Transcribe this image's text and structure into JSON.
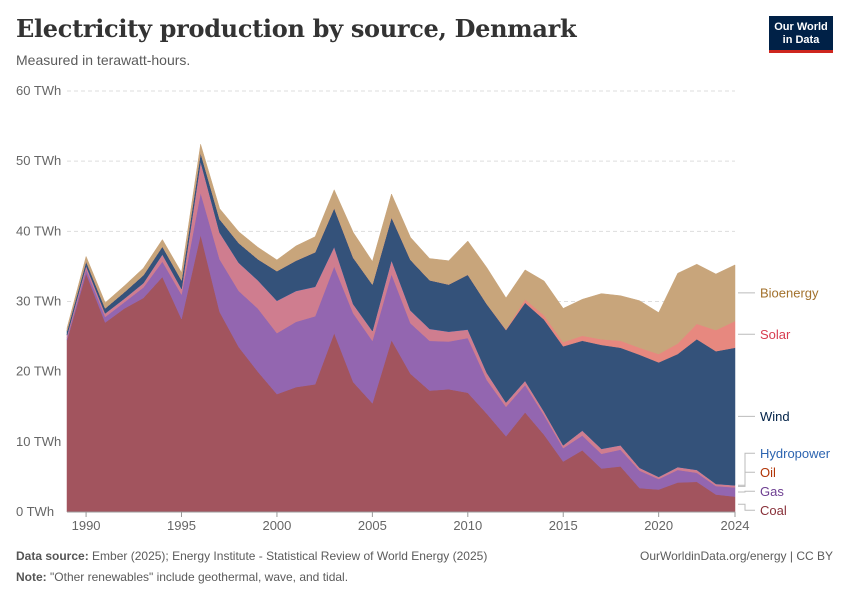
{
  "title": "Electricity production by source, Denmark",
  "subtitle": "Measured in terawatt-hours.",
  "logo": {
    "line1": "Our World",
    "line2": "in Data",
    "bg": "#002147",
    "accent": "#ce261e"
  },
  "footer": {
    "source_label": "Data source:",
    "source_text": "Ember (2025); Energy Institute - Statistical Review of World Energy (2025)",
    "note_label": "Note:",
    "note_text": "\"Other renewables\" include geothermal, wave, and tidal.",
    "url": "OurWorldinData.org/energy | CC BY"
  },
  "chart_data": {
    "type": "area",
    "stacked": true,
    "ylim": [
      0,
      60
    ],
    "yticks": [
      0,
      10,
      20,
      30,
      40,
      50,
      60
    ],
    "ytick_labels": [
      "0 TWh",
      "10 TWh",
      "20 TWh",
      "30 TWh",
      "40 TWh",
      "50 TWh",
      "60 TWh"
    ],
    "xlim": [
      1989,
      2024
    ],
    "xticks": [
      1990,
      1995,
      2000,
      2005,
      2010,
      2015,
      2020,
      2024
    ],
    "xtick_labels": [
      "1990",
      "1995",
      "2000",
      "2005",
      "2010",
      "2015",
      "2020",
      "2024"
    ],
    "x": [
      1989,
      1990,
      1991,
      1992,
      1993,
      1994,
      1995,
      1996,
      1997,
      1998,
      1999,
      2000,
      2001,
      2002,
      2003,
      2004,
      2005,
      2006,
      2007,
      2008,
      2009,
      2010,
      2011,
      2012,
      2013,
      2014,
      2015,
      2016,
      2017,
      2018,
      2019,
      2020,
      2021,
      2022,
      2023,
      2024
    ],
    "series": [
      {
        "name": "Coal",
        "color": "#a2545e",
        "label_color": "#883039",
        "values": [
          24.5,
          34.0,
          27.0,
          29.0,
          30.5,
          33.5,
          27.5,
          39.5,
          28.5,
          23.5,
          20.0,
          16.8,
          17.8,
          18.2,
          25.5,
          18.5,
          15.5,
          24.5,
          19.7,
          17.3,
          17.5,
          17.0,
          14.0,
          10.8,
          14.2,
          11.0,
          7.2,
          8.8,
          6.2,
          6.5,
          3.4,
          3.2,
          4.2,
          4.3,
          2.5,
          2.2
        ]
      },
      {
        "name": "Gas",
        "color": "#9366b0",
        "label_color": "#6d3e91",
        "values": [
          0.3,
          0.6,
          0.8,
          0.9,
          1.5,
          2.2,
          3.5,
          6.0,
          7.5,
          8.0,
          9.0,
          8.7,
          9.3,
          9.7,
          9.5,
          9.8,
          8.9,
          9.4,
          7.2,
          7.1,
          6.8,
          7.8,
          4.8,
          4.2,
          3.9,
          2.8,
          1.9,
          2.1,
          2.1,
          2.4,
          2.5,
          1.5,
          1.8,
          1.3,
          1.2,
          1.3
        ]
      },
      {
        "name": "Oil",
        "color": "#cf7d8f",
        "label_color": "#b13507",
        "values": [
          0.4,
          0.5,
          0.5,
          0.5,
          0.6,
          1.0,
          0.8,
          4.5,
          3.8,
          4.0,
          4.0,
          4.6,
          4.4,
          4.2,
          2.8,
          1.3,
          1.4,
          2.0,
          1.8,
          1.7,
          1.4,
          1.2,
          1.0,
          0.6,
          0.6,
          0.5,
          0.4,
          0.7,
          0.7,
          0.6,
          0.4,
          0.3,
          0.4,
          0.4,
          0.3,
          0.3
        ]
      },
      {
        "name": "Hydropower",
        "color": "#3a6eb8",
        "label_color": "#2c64b0",
        "values": [
          0.02,
          0.03,
          0.03,
          0.03,
          0.04,
          0.04,
          0.04,
          0.02,
          0.02,
          0.03,
          0.03,
          0.03,
          0.03,
          0.03,
          0.02,
          0.03,
          0.02,
          0.02,
          0.03,
          0.03,
          0.02,
          0.02,
          0.02,
          0.02,
          0.01,
          0.02,
          0.02,
          0.02,
          0.02,
          0.02,
          0.02,
          0.02,
          0.02,
          0.02,
          0.02,
          0.02
        ]
      },
      {
        "name": "Wind",
        "color": "#34527a",
        "label_color": "#002147",
        "values": [
          0.6,
          0.6,
          0.7,
          0.9,
          1.1,
          1.1,
          1.2,
          1.2,
          1.9,
          2.8,
          3.0,
          4.2,
          4.3,
          4.9,
          5.5,
          6.6,
          6.6,
          6.1,
          7.2,
          6.9,
          6.7,
          7.8,
          9.8,
          10.3,
          11.1,
          13.1,
          14.1,
          12.8,
          14.8,
          13.9,
          16.1,
          16.3,
          16.1,
          18.6,
          18.9,
          19.6
        ]
      },
      {
        "name": "Solar",
        "color": "#e7887f",
        "label_color": "#d73c50",
        "values": [
          0,
          0,
          0,
          0,
          0,
          0,
          0,
          0,
          0,
          0,
          0,
          0,
          0,
          0,
          0,
          0,
          0,
          0,
          0,
          0,
          0,
          0,
          0,
          0.1,
          0.5,
          0.6,
          0.6,
          0.7,
          0.8,
          1.0,
          1.0,
          1.2,
          1.5,
          2.2,
          3.0,
          3.8
        ]
      },
      {
        "name": "Bioenergy",
        "color": "#c8a57b",
        "label_color": "#a2712c",
        "values": [
          0.4,
          0.7,
          0.8,
          0.9,
          1.0,
          1.0,
          1.1,
          1.2,
          1.5,
          1.6,
          1.7,
          1.6,
          2.1,
          2.2,
          2.6,
          3.6,
          3.3,
          3.3,
          3.2,
          3.1,
          3.4,
          4.8,
          5.2,
          4.5,
          4.2,
          4.9,
          4.8,
          5.2,
          6.5,
          6.4,
          6.7,
          5.9,
          10.0,
          8.5,
          8.0,
          8.0
        ]
      }
    ]
  }
}
